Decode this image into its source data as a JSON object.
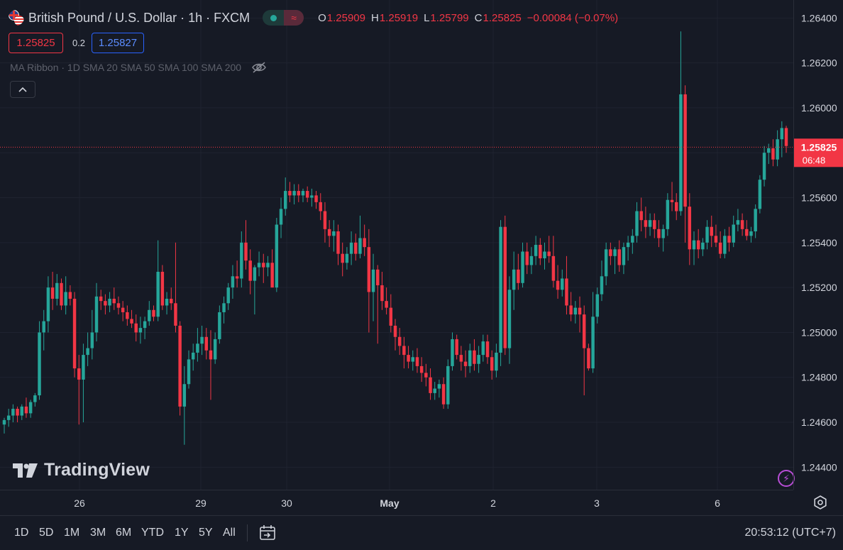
{
  "header": {
    "symbol_title": "British Pound / U.S. Dollar · 1h · FXCM",
    "ohlc": [
      {
        "key": "O",
        "value": "1.25909"
      },
      {
        "key": "H",
        "value": "1.25919"
      },
      {
        "key": "L",
        "value": "1.25799"
      },
      {
        "key": "C",
        "value": "1.25825"
      }
    ],
    "change": "−0.00084 (−0.07%)",
    "sell_price": "1.25825",
    "spread": "0.2",
    "buy_price": "1.25827"
  },
  "indicator": {
    "label": "MA Ribbon · 1D SMA 20 SMA 50 SMA 100 SMA 200"
  },
  "logo_text": "TradingView",
  "price_scale": {
    "labels": [
      "1.26400",
      "1.26200",
      "1.26000",
      "1.25800",
      "1.25600",
      "1.25400",
      "1.25200",
      "1.25000",
      "1.24800",
      "1.24600",
      "1.24400"
    ],
    "current_price": "1.25825",
    "countdown": "06:48"
  },
  "time_scale": {
    "labels": [
      "26",
      "29",
      "30",
      "May",
      "2",
      "3",
      "6"
    ]
  },
  "bottom_bar": {
    "timeframes": [
      "1D",
      "5D",
      "1M",
      "3M",
      "6M",
      "YTD",
      "1Y",
      "5Y",
      "All"
    ],
    "clock": "20:53:12 (UTC+7)"
  },
  "colors": {
    "background": "#161a25",
    "up": "#26a69a",
    "down": "#f23645",
    "text": "#d1d4dc",
    "muted": "#5d606b",
    "grid": "#1f2330"
  },
  "chart_data": {
    "type": "candlestick",
    "symbol": "GBPUSD",
    "interval": "1h",
    "ylim": [
      1.243,
      1.2648
    ],
    "candles": [
      {
        "o": 1.2459,
        "h": 1.2462,
        "l": 1.2455,
        "c": 1.2461
      },
      {
        "o": 1.2461,
        "h": 1.2466,
        "l": 1.2458,
        "c": 1.2463
      },
      {
        "o": 1.2463,
        "h": 1.2468,
        "l": 1.246,
        "c": 1.2466
      },
      {
        "o": 1.2466,
        "h": 1.2467,
        "l": 1.246,
        "c": 1.2463
      },
      {
        "o": 1.2463,
        "h": 1.2468,
        "l": 1.2461,
        "c": 1.2467
      },
      {
        "o": 1.2467,
        "h": 1.2471,
        "l": 1.2462,
        "c": 1.2464
      },
      {
        "o": 1.2464,
        "h": 1.247,
        "l": 1.2462,
        "c": 1.2469
      },
      {
        "o": 1.2469,
        "h": 1.2473,
        "l": 1.2467,
        "c": 1.2472
      },
      {
        "o": 1.2472,
        "h": 1.2505,
        "l": 1.247,
        "c": 1.25
      },
      {
        "o": 1.25,
        "h": 1.251,
        "l": 1.2492,
        "c": 1.2505
      },
      {
        "o": 1.2505,
        "h": 1.2525,
        "l": 1.25,
        "c": 1.252
      },
      {
        "o": 1.252,
        "h": 1.2527,
        "l": 1.251,
        "c": 1.2515
      },
      {
        "o": 1.2515,
        "h": 1.2526,
        "l": 1.2512,
        "c": 1.2522
      },
      {
        "o": 1.2522,
        "h": 1.2524,
        "l": 1.251,
        "c": 1.2512
      },
      {
        "o": 1.2512,
        "h": 1.2525,
        "l": 1.2508,
        "c": 1.2518
      },
      {
        "o": 1.2518,
        "h": 1.2521,
        "l": 1.2512,
        "c": 1.2515
      },
      {
        "o": 1.2515,
        "h": 1.2518,
        "l": 1.248,
        "c": 1.2484
      },
      {
        "o": 1.2484,
        "h": 1.249,
        "l": 1.2459,
        "c": 1.2479
      },
      {
        "o": 1.2479,
        "h": 1.2495,
        "l": 1.246,
        "c": 1.249
      },
      {
        "o": 1.249,
        "h": 1.25,
        "l": 1.2485,
        "c": 1.2493
      },
      {
        "o": 1.2493,
        "h": 1.251,
        "l": 1.2488,
        "c": 1.25
      },
      {
        "o": 1.25,
        "h": 1.2522,
        "l": 1.2496,
        "c": 1.2516
      },
      {
        "o": 1.2516,
        "h": 1.2519,
        "l": 1.251,
        "c": 1.2514
      },
      {
        "o": 1.2514,
        "h": 1.2517,
        "l": 1.2508,
        "c": 1.2512
      },
      {
        "o": 1.2512,
        "h": 1.2518,
        "l": 1.2509,
        "c": 1.2515
      },
      {
        "o": 1.2515,
        "h": 1.252,
        "l": 1.251,
        "c": 1.2513
      },
      {
        "o": 1.2513,
        "h": 1.2516,
        "l": 1.2508,
        "c": 1.2511
      },
      {
        "o": 1.2511,
        "h": 1.2514,
        "l": 1.2505,
        "c": 1.2509
      },
      {
        "o": 1.2509,
        "h": 1.2512,
        "l": 1.2503,
        "c": 1.2506
      },
      {
        "o": 1.2506,
        "h": 1.251,
        "l": 1.2502,
        "c": 1.2504
      },
      {
        "o": 1.2504,
        "h": 1.2508,
        "l": 1.2496,
        "c": 1.25
      },
      {
        "o": 1.25,
        "h": 1.2507,
        "l": 1.2495,
        "c": 1.2502
      },
      {
        "o": 1.2502,
        "h": 1.2507,
        "l": 1.2497,
        "c": 1.2505
      },
      {
        "o": 1.2505,
        "h": 1.2514,
        "l": 1.2503,
        "c": 1.251
      },
      {
        "o": 1.251,
        "h": 1.2512,
        "l": 1.2505,
        "c": 1.2507
      },
      {
        "o": 1.2507,
        "h": 1.2541,
        "l": 1.2505,
        "c": 1.2527
      },
      {
        "o": 1.2527,
        "h": 1.253,
        "l": 1.251,
        "c": 1.2512
      },
      {
        "o": 1.2512,
        "h": 1.2518,
        "l": 1.2508,
        "c": 1.2515
      },
      {
        "o": 1.2515,
        "h": 1.252,
        "l": 1.251,
        "c": 1.2513
      },
      {
        "o": 1.2513,
        "h": 1.254,
        "l": 1.25,
        "c": 1.2503
      },
      {
        "o": 1.2503,
        "h": 1.2505,
        "l": 1.2463,
        "c": 1.2467
      },
      {
        "o": 1.2467,
        "h": 1.2485,
        "l": 1.245,
        "c": 1.2477
      },
      {
        "o": 1.2477,
        "h": 1.2492,
        "l": 1.2475,
        "c": 1.2488
      },
      {
        "o": 1.2488,
        "h": 1.2495,
        "l": 1.2483,
        "c": 1.2491
      },
      {
        "o": 1.2491,
        "h": 1.2502,
        "l": 1.2487,
        "c": 1.2495
      },
      {
        "o": 1.2495,
        "h": 1.2503,
        "l": 1.249,
        "c": 1.2498
      },
      {
        "o": 1.2498,
        "h": 1.2502,
        "l": 1.2488,
        "c": 1.2492
      },
      {
        "o": 1.2492,
        "h": 1.2501,
        "l": 1.247,
        "c": 1.2488
      },
      {
        "o": 1.2488,
        "h": 1.25,
        "l": 1.2486,
        "c": 1.2497
      },
      {
        "o": 1.2497,
        "h": 1.2512,
        "l": 1.2495,
        "c": 1.2509
      },
      {
        "o": 1.2509,
        "h": 1.2516,
        "l": 1.2504,
        "c": 1.2513
      },
      {
        "o": 1.2513,
        "h": 1.2522,
        "l": 1.251,
        "c": 1.252
      },
      {
        "o": 1.252,
        "h": 1.253,
        "l": 1.2515,
        "c": 1.2525
      },
      {
        "o": 1.2525,
        "h": 1.2532,
        "l": 1.252,
        "c": 1.2524
      },
      {
        "o": 1.2524,
        "h": 1.2545,
        "l": 1.252,
        "c": 1.254
      },
      {
        "o": 1.254,
        "h": 1.255,
        "l": 1.2528,
        "c": 1.2532
      },
      {
        "o": 1.2532,
        "h": 1.2537,
        "l": 1.2517,
        "c": 1.2523
      },
      {
        "o": 1.2523,
        "h": 1.253,
        "l": 1.2508,
        "c": 1.2529
      },
      {
        "o": 1.2529,
        "h": 1.2536,
        "l": 1.2525,
        "c": 1.2531
      },
      {
        "o": 1.2531,
        "h": 1.2535,
        "l": 1.2522,
        "c": 1.2529
      },
      {
        "o": 1.2529,
        "h": 1.2534,
        "l": 1.2525,
        "c": 1.2531
      },
      {
        "o": 1.2531,
        "h": 1.2537,
        "l": 1.252,
        "c": 1.252
      },
      {
        "o": 1.252,
        "h": 1.2551,
        "l": 1.2518,
        "c": 1.2548
      },
      {
        "o": 1.2548,
        "h": 1.256,
        "l": 1.2542,
        "c": 1.2555
      },
      {
        "o": 1.2555,
        "h": 1.2569,
        "l": 1.2552,
        "c": 1.2563
      },
      {
        "o": 1.2563,
        "h": 1.2567,
        "l": 1.2558,
        "c": 1.2561
      },
      {
        "o": 1.2561,
        "h": 1.2566,
        "l": 1.2557,
        "c": 1.2563
      },
      {
        "o": 1.2563,
        "h": 1.2566,
        "l": 1.2558,
        "c": 1.2561
      },
      {
        "o": 1.2561,
        "h": 1.2564,
        "l": 1.2558,
        "c": 1.2563
      },
      {
        "o": 1.2563,
        "h": 1.2565,
        "l": 1.2558,
        "c": 1.256
      },
      {
        "o": 1.256,
        "h": 1.2564,
        "l": 1.2556,
        "c": 1.2561
      },
      {
        "o": 1.2561,
        "h": 1.2563,
        "l": 1.2555,
        "c": 1.2558
      },
      {
        "o": 1.2558,
        "h": 1.2562,
        "l": 1.255,
        "c": 1.2554
      },
      {
        "o": 1.2554,
        "h": 1.2558,
        "l": 1.254,
        "c": 1.2546
      },
      {
        "o": 1.2546,
        "h": 1.255,
        "l": 1.2538,
        "c": 1.2543
      },
      {
        "o": 1.2543,
        "h": 1.255,
        "l": 1.2536,
        "c": 1.2545
      },
      {
        "o": 1.2545,
        "h": 1.2548,
        "l": 1.253,
        "c": 1.2535
      },
      {
        "o": 1.2535,
        "h": 1.254,
        "l": 1.2525,
        "c": 1.2531
      },
      {
        "o": 1.2531,
        "h": 1.2538,
        "l": 1.2528,
        "c": 1.2535
      },
      {
        "o": 1.2535,
        "h": 1.2545,
        "l": 1.253,
        "c": 1.254
      },
      {
        "o": 1.254,
        "h": 1.2544,
        "l": 1.2532,
        "c": 1.2535
      },
      {
        "o": 1.2535,
        "h": 1.2552,
        "l": 1.2533,
        "c": 1.2542
      },
      {
        "o": 1.2542,
        "h": 1.2548,
        "l": 1.2534,
        "c": 1.2538
      },
      {
        "o": 1.2538,
        "h": 1.2546,
        "l": 1.25,
        "c": 1.2518
      },
      {
        "o": 1.2518,
        "h": 1.2535,
        "l": 1.2505,
        "c": 1.2528
      },
      {
        "o": 1.2528,
        "h": 1.253,
        "l": 1.2495,
        "c": 1.2521
      },
      {
        "o": 1.2521,
        "h": 1.2527,
        "l": 1.251,
        "c": 1.2514
      },
      {
        "o": 1.2514,
        "h": 1.252,
        "l": 1.2508,
        "c": 1.2511
      },
      {
        "o": 1.2511,
        "h": 1.2517,
        "l": 1.25,
        "c": 1.2503
      },
      {
        "o": 1.2503,
        "h": 1.2506,
        "l": 1.2492,
        "c": 1.2498
      },
      {
        "o": 1.2498,
        "h": 1.2502,
        "l": 1.249,
        "c": 1.2494
      },
      {
        "o": 1.2494,
        "h": 1.2498,
        "l": 1.2484,
        "c": 1.249
      },
      {
        "o": 1.249,
        "h": 1.2494,
        "l": 1.2484,
        "c": 1.2487
      },
      {
        "o": 1.2487,
        "h": 1.2492,
        "l": 1.2483,
        "c": 1.2489
      },
      {
        "o": 1.2489,
        "h": 1.2493,
        "l": 1.2482,
        "c": 1.2485
      },
      {
        "o": 1.2485,
        "h": 1.2489,
        "l": 1.2478,
        "c": 1.2482
      },
      {
        "o": 1.2482,
        "h": 1.2486,
        "l": 1.2476,
        "c": 1.248
      },
      {
        "o": 1.248,
        "h": 1.2484,
        "l": 1.247,
        "c": 1.2473
      },
      {
        "o": 1.2473,
        "h": 1.2478,
        "l": 1.247,
        "c": 1.2475
      },
      {
        "o": 1.2475,
        "h": 1.2479,
        "l": 1.2471,
        "c": 1.2477
      },
      {
        "o": 1.2477,
        "h": 1.248,
        "l": 1.2466,
        "c": 1.2468
      },
      {
        "o": 1.2468,
        "h": 1.2488,
        "l": 1.2466,
        "c": 1.2485
      },
      {
        "o": 1.2485,
        "h": 1.25,
        "l": 1.2483,
        "c": 1.2497
      },
      {
        "o": 1.2497,
        "h": 1.2499,
        "l": 1.2488,
        "c": 1.249
      },
      {
        "o": 1.249,
        "h": 1.2494,
        "l": 1.2483,
        "c": 1.2487
      },
      {
        "o": 1.2487,
        "h": 1.2492,
        "l": 1.248,
        "c": 1.2485
      },
      {
        "o": 1.2485,
        "h": 1.2495,
        "l": 1.2482,
        "c": 1.2492
      },
      {
        "o": 1.2492,
        "h": 1.2497,
        "l": 1.2483,
        "c": 1.2486
      },
      {
        "o": 1.2486,
        "h": 1.2494,
        "l": 1.2482,
        "c": 1.249
      },
      {
        "o": 1.249,
        "h": 1.2499,
        "l": 1.2487,
        "c": 1.2496
      },
      {
        "o": 1.2496,
        "h": 1.2499,
        "l": 1.2486,
        "c": 1.2489
      },
      {
        "o": 1.2489,
        "h": 1.2492,
        "l": 1.2479,
        "c": 1.2483
      },
      {
        "o": 1.2483,
        "h": 1.2495,
        "l": 1.248,
        "c": 1.2491
      },
      {
        "o": 1.2491,
        "h": 1.255,
        "l": 1.2485,
        "c": 1.2547
      },
      {
        "o": 1.2547,
        "h": 1.2552,
        "l": 1.249,
        "c": 1.2493
      },
      {
        "o": 1.2493,
        "h": 1.2525,
        "l": 1.2486,
        "c": 1.2519
      },
      {
        "o": 1.2519,
        "h": 1.2536,
        "l": 1.251,
        "c": 1.2528
      },
      {
        "o": 1.2528,
        "h": 1.2535,
        "l": 1.2519,
        "c": 1.2522
      },
      {
        "o": 1.2522,
        "h": 1.254,
        "l": 1.252,
        "c": 1.2536
      },
      {
        "o": 1.2536,
        "h": 1.254,
        "l": 1.2526,
        "c": 1.253
      },
      {
        "o": 1.253,
        "h": 1.2538,
        "l": 1.2526,
        "c": 1.2534
      },
      {
        "o": 1.2534,
        "h": 1.2543,
        "l": 1.253,
        "c": 1.2539
      },
      {
        "o": 1.2539,
        "h": 1.2542,
        "l": 1.253,
        "c": 1.2533
      },
      {
        "o": 1.2533,
        "h": 1.254,
        "l": 1.2528,
        "c": 1.2536
      },
      {
        "o": 1.2536,
        "h": 1.2543,
        "l": 1.2531,
        "c": 1.2534
      },
      {
        "o": 1.2534,
        "h": 1.2543,
        "l": 1.252,
        "c": 1.2523
      },
      {
        "o": 1.2523,
        "h": 1.253,
        "l": 1.2515,
        "c": 1.2519
      },
      {
        "o": 1.2519,
        "h": 1.2528,
        "l": 1.2516,
        "c": 1.2524
      },
      {
        "o": 1.2524,
        "h": 1.2534,
        "l": 1.2508,
        "c": 1.2512
      },
      {
        "o": 1.2512,
        "h": 1.2518,
        "l": 1.2505,
        "c": 1.2508
      },
      {
        "o": 1.2508,
        "h": 1.2514,
        "l": 1.2504,
        "c": 1.2511
      },
      {
        "o": 1.2511,
        "h": 1.2516,
        "l": 1.25,
        "c": 1.2508
      },
      {
        "o": 1.2508,
        "h": 1.2512,
        "l": 1.2472,
        "c": 1.2493
      },
      {
        "o": 1.2493,
        "h": 1.2495,
        "l": 1.2483,
        "c": 1.2484
      },
      {
        "o": 1.2484,
        "h": 1.2518,
        "l": 1.2482,
        "c": 1.2507
      },
      {
        "o": 1.2507,
        "h": 1.252,
        "l": 1.2504,
        "c": 1.2517
      },
      {
        "o": 1.2517,
        "h": 1.2532,
        "l": 1.2514,
        "c": 1.2525
      },
      {
        "o": 1.2525,
        "h": 1.254,
        "l": 1.2521,
        "c": 1.2537
      },
      {
        "o": 1.2537,
        "h": 1.254,
        "l": 1.253,
        "c": 1.2534
      },
      {
        "o": 1.2534,
        "h": 1.2538,
        "l": 1.2526,
        "c": 1.2537
      },
      {
        "o": 1.2537,
        "h": 1.2541,
        "l": 1.2527,
        "c": 1.253
      },
      {
        "o": 1.253,
        "h": 1.254,
        "l": 1.2526,
        "c": 1.2538
      },
      {
        "o": 1.2538,
        "h": 1.2543,
        "l": 1.2532,
        "c": 1.254
      },
      {
        "o": 1.254,
        "h": 1.2546,
        "l": 1.2535,
        "c": 1.2543
      },
      {
        "o": 1.2543,
        "h": 1.2558,
        "l": 1.254,
        "c": 1.2554
      },
      {
        "o": 1.2554,
        "h": 1.256,
        "l": 1.2545,
        "c": 1.255
      },
      {
        "o": 1.255,
        "h": 1.2556,
        "l": 1.2542,
        "c": 1.2547
      },
      {
        "o": 1.2547,
        "h": 1.2553,
        "l": 1.2543,
        "c": 1.255
      },
      {
        "o": 1.255,
        "h": 1.2553,
        "l": 1.2542,
        "c": 1.2546
      },
      {
        "o": 1.2546,
        "h": 1.255,
        "l": 1.2538,
        "c": 1.2542
      },
      {
        "o": 1.2542,
        "h": 1.2548,
        "l": 1.2536,
        "c": 1.2546
      },
      {
        "o": 1.2546,
        "h": 1.2562,
        "l": 1.2543,
        "c": 1.2559
      },
      {
        "o": 1.2559,
        "h": 1.2567,
        "l": 1.2554,
        "c": 1.2558
      },
      {
        "o": 1.2558,
        "h": 1.2562,
        "l": 1.255,
        "c": 1.2554
      },
      {
        "o": 1.2554,
        "h": 1.2634,
        "l": 1.2552,
        "c": 1.2606
      },
      {
        "o": 1.2606,
        "h": 1.261,
        "l": 1.254,
        "c": 1.2556
      },
      {
        "o": 1.2556,
        "h": 1.2562,
        "l": 1.253,
        "c": 1.2537
      },
      {
        "o": 1.2537,
        "h": 1.2545,
        "l": 1.253,
        "c": 1.2541
      },
      {
        "o": 1.2541,
        "h": 1.2546,
        "l": 1.2533,
        "c": 1.2537
      },
      {
        "o": 1.2537,
        "h": 1.2542,
        "l": 1.2534,
        "c": 1.254
      },
      {
        "o": 1.254,
        "h": 1.255,
        "l": 1.2537,
        "c": 1.2547
      },
      {
        "o": 1.2547,
        "h": 1.2552,
        "l": 1.2538,
        "c": 1.2543
      },
      {
        "o": 1.2543,
        "h": 1.2548,
        "l": 1.2538,
        "c": 1.254
      },
      {
        "o": 1.254,
        "h": 1.2545,
        "l": 1.2533,
        "c": 1.2535
      },
      {
        "o": 1.2535,
        "h": 1.2546,
        "l": 1.2533,
        "c": 1.2543
      },
      {
        "o": 1.2543,
        "h": 1.2547,
        "l": 1.2536,
        "c": 1.254
      },
      {
        "o": 1.254,
        "h": 1.2552,
        "l": 1.2538,
        "c": 1.2548
      },
      {
        "o": 1.2548,
        "h": 1.2555,
        "l": 1.2545,
        "c": 1.255
      },
      {
        "o": 1.255,
        "h": 1.2553,
        "l": 1.2543,
        "c": 1.2546
      },
      {
        "o": 1.2546,
        "h": 1.255,
        "l": 1.2541,
        "c": 1.2543
      },
      {
        "o": 1.2543,
        "h": 1.2547,
        "l": 1.254,
        "c": 1.2545
      },
      {
        "o": 1.2545,
        "h": 1.2557,
        "l": 1.2542,
        "c": 1.2555
      },
      {
        "o": 1.2555,
        "h": 1.257,
        "l": 1.2553,
        "c": 1.2568
      },
      {
        "o": 1.2568,
        "h": 1.2583,
        "l": 1.2565,
        "c": 1.258
      },
      {
        "o": 1.258,
        "h": 1.2584,
        "l": 1.2575,
        "c": 1.2582
      },
      {
        "o": 1.2582,
        "h": 1.2586,
        "l": 1.2574,
        "c": 1.2577
      },
      {
        "o": 1.2577,
        "h": 1.259,
        "l": 1.2574,
        "c": 1.2586
      },
      {
        "o": 1.2586,
        "h": 1.2594,
        "l": 1.2578,
        "c": 1.2591
      },
      {
        "o": 1.2591,
        "h": 1.2592,
        "l": 1.258,
        "c": 1.2583
      }
    ]
  }
}
